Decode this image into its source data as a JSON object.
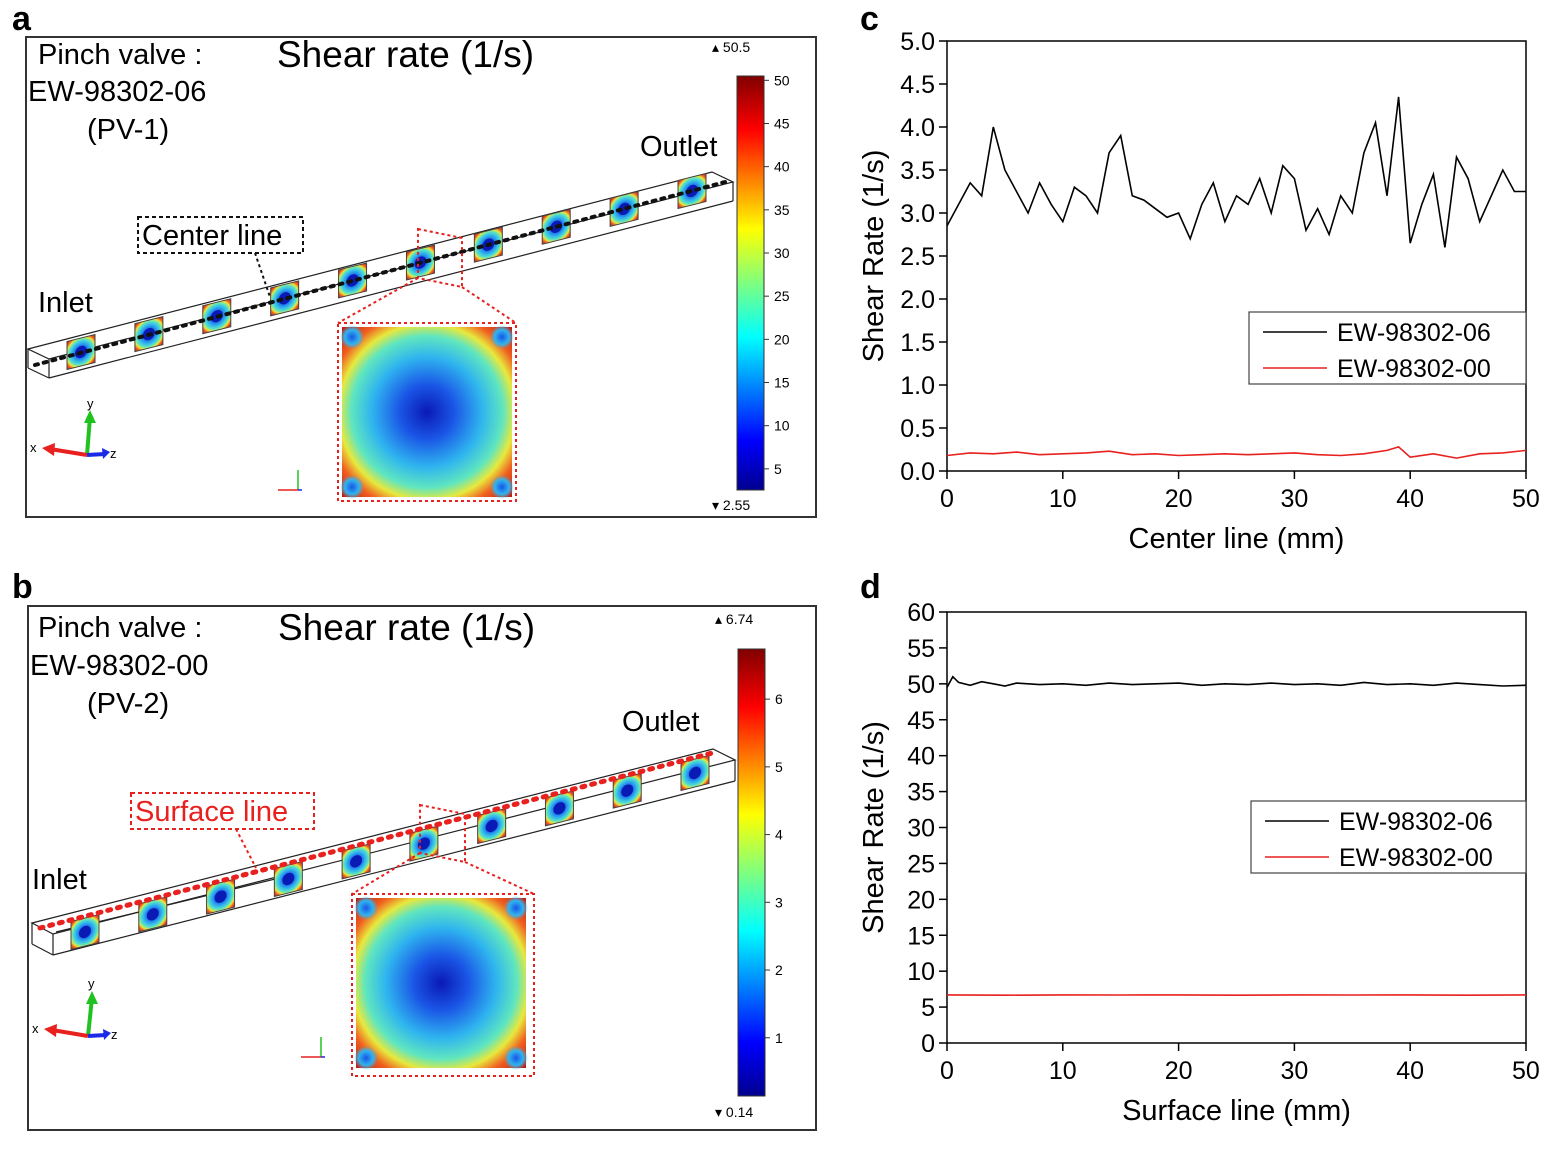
{
  "panels": {
    "a": {
      "label": "a",
      "valve_lines": [
        "Pinch valve :",
        "EW-98302-06",
        "(PV-1)"
      ],
      "title": "Shear rate (1/s)",
      "line_label": "Center line",
      "inlet": "Inlet",
      "outlet": "Outlet",
      "colorbar": {
        "max_label": "▴ 50.5",
        "min_label": "▾ 2.55",
        "ticks": [
          "50",
          "45",
          "40",
          "35",
          "30",
          "25",
          "20",
          "15",
          "10",
          "5"
        ],
        "vmin": 2.55,
        "vmax": 50.5
      }
    },
    "b": {
      "label": "b",
      "valve_lines": [
        "Pinch valve :",
        "EW-98302-00",
        "(PV-2)"
      ],
      "title": "Shear rate (1/s)",
      "line_label": "Surface line",
      "inlet": "Inlet",
      "outlet": "Outlet",
      "colorbar": {
        "max_label": "▴ 6.74",
        "min_label": "▾ 0.14",
        "ticks": [
          "6",
          "5",
          "4",
          "3",
          "2",
          "1"
        ],
        "vmin": 0.14,
        "vmax": 6.74
      }
    },
    "c": {
      "label": "c"
    },
    "d": {
      "label": "d"
    }
  },
  "axes_triad": {
    "x": "x",
    "y": "y",
    "z": "z"
  },
  "colors": {
    "black_series": "#000000",
    "red_series": "#e8201e",
    "frame": "#333333",
    "dotted_red": "#e8201e"
  },
  "chart_data": [
    {
      "panel": "c",
      "type": "line",
      "xlabel": "Center line (mm)",
      "ylabel": "Shear Rate (1/s)",
      "xlim": [
        0,
        50
      ],
      "ylim": [
        0,
        5.0
      ],
      "xticks": [
        "0",
        "10",
        "20",
        "30",
        "40",
        "50"
      ],
      "yticks": [
        "0.0",
        "0.5",
        "1.0",
        "1.5",
        "2.0",
        "2.5",
        "3.0",
        "3.5",
        "4.0",
        "4.5",
        "5.0"
      ],
      "legend_position": "center-right",
      "series": [
        {
          "name": "EW-98302-06",
          "color": "#000000",
          "x": [
            0,
            1,
            2,
            3,
            4,
            5,
            6,
            7,
            8,
            9,
            10,
            11,
            12,
            13,
            14,
            15,
            16,
            17,
            18,
            19,
            20,
            21,
            22,
            23,
            24,
            25,
            26,
            27,
            28,
            29,
            30,
            31,
            32,
            33,
            34,
            35,
            36,
            37,
            38,
            39,
            40,
            41,
            42,
            43,
            44,
            45,
            46,
            47,
            48,
            49,
            50
          ],
          "y": [
            2.85,
            3.1,
            3.35,
            3.2,
            4.0,
            3.5,
            3.25,
            3.0,
            3.35,
            3.1,
            2.9,
            3.3,
            3.2,
            3.0,
            3.7,
            3.9,
            3.2,
            3.15,
            3.05,
            2.95,
            3.0,
            2.7,
            3.1,
            3.35,
            2.9,
            3.2,
            3.1,
            3.4,
            3.0,
            3.55,
            3.4,
            2.8,
            3.05,
            2.75,
            3.2,
            3.0,
            3.7,
            4.05,
            3.2,
            4.35,
            2.65,
            3.1,
            3.45,
            2.6,
            3.65,
            3.4,
            2.9,
            3.2,
            3.5,
            3.25,
            3.25
          ]
        },
        {
          "name": "EW-98302-00",
          "color": "#e8201e",
          "x": [
            0,
            2,
            4,
            6,
            8,
            10,
            12,
            14,
            16,
            18,
            20,
            22,
            24,
            26,
            28,
            30,
            32,
            34,
            36,
            38,
            39,
            40,
            42,
            44,
            46,
            48,
            50
          ],
          "y": [
            0.18,
            0.21,
            0.2,
            0.22,
            0.19,
            0.2,
            0.21,
            0.23,
            0.19,
            0.2,
            0.18,
            0.19,
            0.2,
            0.19,
            0.2,
            0.21,
            0.19,
            0.18,
            0.2,
            0.24,
            0.28,
            0.16,
            0.2,
            0.15,
            0.2,
            0.21,
            0.24
          ]
        }
      ]
    },
    {
      "panel": "d",
      "type": "line",
      "xlabel": "Surface line (mm)",
      "ylabel": "Shear Rate (1/s)",
      "xlim": [
        0,
        50
      ],
      "ylim": [
        0,
        60
      ],
      "xticks": [
        "0",
        "10",
        "20",
        "30",
        "40",
        "50"
      ],
      "yticks": [
        "0",
        "5",
        "10",
        "15",
        "20",
        "25",
        "30",
        "35",
        "40",
        "45",
        "50",
        "55",
        "60"
      ],
      "legend_position": "center-right",
      "series": [
        {
          "name": "EW-98302-06",
          "color": "#000000",
          "x": [
            0,
            0.5,
            1,
            2,
            3,
            4,
            5,
            6,
            8,
            10,
            12,
            14,
            16,
            18,
            20,
            22,
            24,
            26,
            28,
            30,
            32,
            34,
            36,
            38,
            40,
            42,
            44,
            46,
            48,
            50
          ],
          "y": [
            49.5,
            51.0,
            50.2,
            49.8,
            50.3,
            50.0,
            49.7,
            50.1,
            49.9,
            50.0,
            49.8,
            50.1,
            49.9,
            50.0,
            50.1,
            49.8,
            50.0,
            49.9,
            50.1,
            49.9,
            50.0,
            49.8,
            50.2,
            49.9,
            50.0,
            49.8,
            50.1,
            49.9,
            49.7,
            49.8
          ]
        },
        {
          "name": "EW-98302-00",
          "color": "#e8201e",
          "x": [
            0,
            5,
            10,
            15,
            20,
            25,
            30,
            35,
            40,
            45,
            50
          ],
          "y": [
            6.7,
            6.65,
            6.7,
            6.68,
            6.7,
            6.66,
            6.7,
            6.68,
            6.7,
            6.66,
            6.7
          ]
        }
      ]
    }
  ]
}
